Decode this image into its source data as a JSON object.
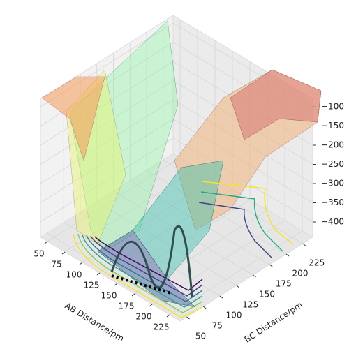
{
  "chart_data": {
    "type": "surface3d",
    "xlabel": "AB Distance/pm",
    "ylabel": "BC Distance/pm",
    "xlim": [
      40,
      240
    ],
    "ylim": [
      40,
      240
    ],
    "zlim": [
      -440,
      -80
    ],
    "xticks": [
      50,
      75,
      100,
      125,
      150,
      175,
      200,
      225
    ],
    "yticks": [
      50,
      75,
      100,
      125,
      150,
      175,
      200,
      225
    ],
    "zticks": [
      {
        "value": -100,
        "label": "−100"
      },
      {
        "value": -150,
        "label": "−150"
      },
      {
        "value": -200,
        "label": "−200"
      },
      {
        "value": -250,
        "label": "−250"
      },
      {
        "value": -300,
        "label": "−300"
      },
      {
        "value": -350,
        "label": "−350"
      },
      {
        "value": -400,
        "label": "−400"
      }
    ],
    "grid": true
  }
}
